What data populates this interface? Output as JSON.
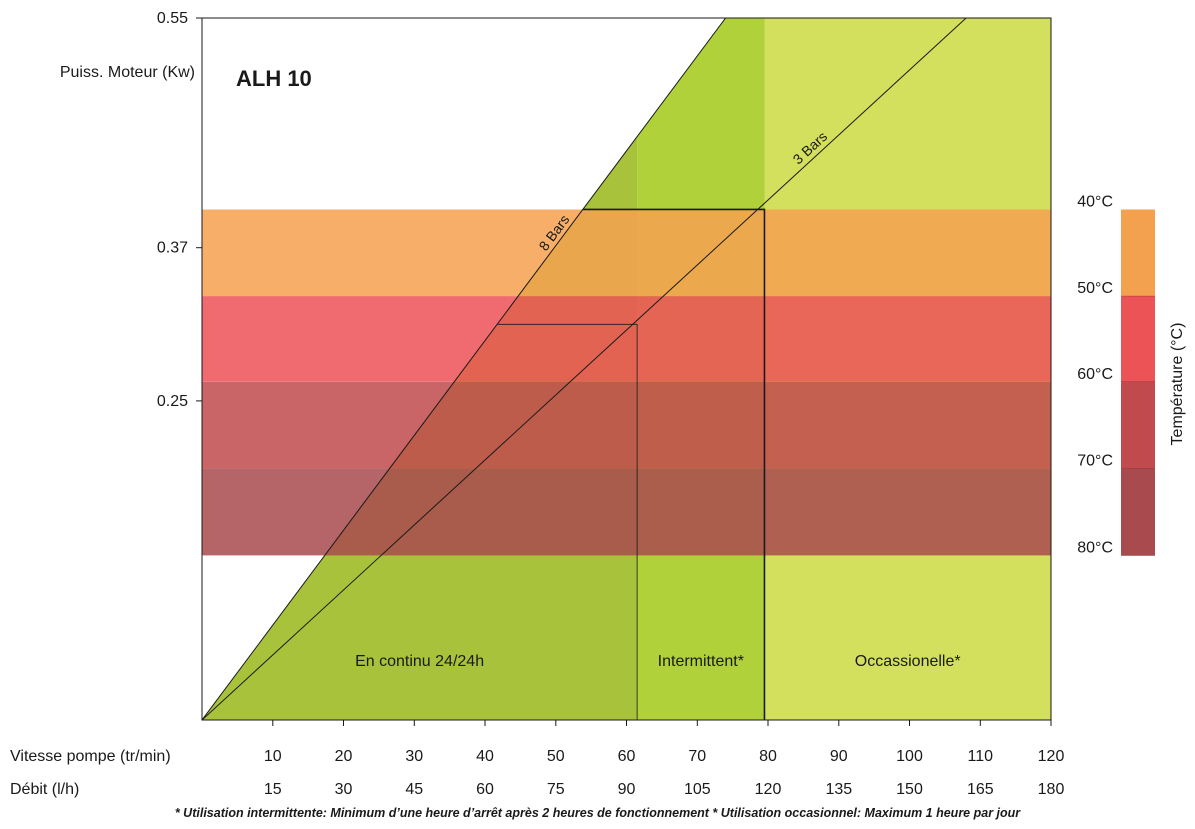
{
  "chart_data": {
    "type": "area",
    "title": "ALH 10",
    "ylabel": "Puiss. Moteur (Kw)",
    "x_axes": [
      {
        "label": "Vitesse pompe (tr/min)",
        "ticks": [
          "10",
          "20",
          "30",
          "40",
          "50",
          "60",
          "70",
          "80",
          "90",
          "100",
          "110",
          "120"
        ]
      },
      {
        "label": "Débit (l/h)",
        "ticks": [
          "15",
          "30",
          "45",
          "60",
          "75",
          "90",
          "105",
          "120",
          "135",
          "150",
          "165",
          "180"
        ]
      }
    ],
    "xlim": [
      0,
      120
    ],
    "ylim": [
      0,
      0.55
    ],
    "yticks": [
      {
        "value": 0.55,
        "label": "0.55"
      },
      {
        "value": 0.37,
        "label": "0.37"
      },
      {
        "value": 0.25,
        "label": "0.25"
      }
    ],
    "series": [
      {
        "name": "8 Bars",
        "x": [
          0,
          74
        ],
        "y": [
          0,
          0.55
        ]
      },
      {
        "name": "3 Bars",
        "x": [
          0,
          108
        ],
        "y": [
          0,
          0.55
        ]
      }
    ],
    "usage_zones": [
      {
        "label": "En continu 24/24h",
        "x_from": 0,
        "x_to": 61.5,
        "y_max": 0.31,
        "color": "#a9c23c"
      },
      {
        "label": "Intermittent*",
        "x_from": 61.5,
        "x_to": 79.5,
        "y_max": 0.4,
        "color": "#b0d13a"
      },
      {
        "label": "Occassionelle*",
        "x_from": 79.5,
        "x_to": 120,
        "y_max": 0.55,
        "color": "#d3e05e"
      }
    ],
    "temperature_scale": {
      "label": "Température (°C)",
      "ticks": [
        "40°C",
        "50°C",
        "60°C",
        "70°C",
        "80°C"
      ],
      "bands": [
        {
          "from": "40°C",
          "to": "50°C",
          "y_top": 0.4,
          "y_bottom": 0.332,
          "color": "#f4a14f"
        },
        {
          "from": "50°C",
          "to": "60°C",
          "y_top": 0.332,
          "y_bottom": 0.265,
          "color": "#ec5357"
        },
        {
          "from": "60°C",
          "to": "70°C",
          "y_top": 0.265,
          "y_bottom": 0.197,
          "color": "#c04a4e"
        },
        {
          "from": "70°C",
          "to": "80°C",
          "y_top": 0.197,
          "y_bottom": 0.129,
          "color": "#a94a4e"
        }
      ]
    }
  },
  "footnote": "* Utilisation intermittente: Minimum d’une heure d’arrêt après 2 heures de fonctionnement  * Utilisation occasionnel: Maximum 1 heure par jour"
}
